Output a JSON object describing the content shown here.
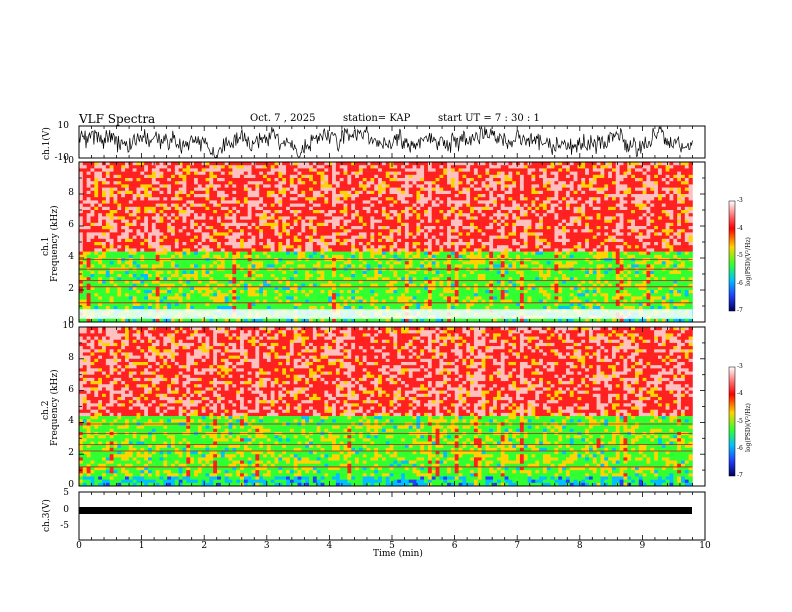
{
  "header": {
    "title": "VLF Spectra",
    "date": "Oct. 7 , 2025",
    "station": "station= KAP",
    "start": "start UT =  7 : 30 : 1"
  },
  "panels": {
    "ch1_wave": {
      "label": "ch.1(V)",
      "ytick_top": "10",
      "ytick_bottom": "-10"
    },
    "ch1_spec": {
      "label_ch": "ch.1",
      "label_freq": "Frequency (kHz)",
      "yticks": [
        "10",
        "8",
        "6",
        "4",
        "2",
        "0"
      ]
    },
    "ch2_spec": {
      "label_ch": "ch.2",
      "label_freq": "Frequency (kHz)",
      "yticks": [
        "10",
        "8",
        "6",
        "4",
        "2",
        "0"
      ]
    },
    "ch3_wave": {
      "label": "ch.3(V)",
      "ytick_top": "5",
      "ytick_mid": "0",
      "ytick_bottom": "-5"
    }
  },
  "colorbar": {
    "label": "log(PSD)(V²/Hz)",
    "ticks": [
      "-3",
      "-4",
      "-5",
      "-6",
      "-7"
    ]
  },
  "colors": {
    "red": "#ff2020",
    "green": "#30ff30",
    "yellow": "#ffd400",
    "blue": "#2040ff"
  },
  "chart_data": {
    "type": "heatmap",
    "title": "VLF Spectra",
    "xlabel": "Time (min)",
    "xticks": [
      "0",
      "1",
      "2",
      "3",
      "4",
      "5",
      "6",
      "7",
      "8",
      "9",
      "10"
    ],
    "xlim": [
      0,
      10
    ],
    "data_end_min": 9.8,
    "ylim_freq_khz": [
      0,
      10
    ],
    "ylim_ch1_v": [
      -10,
      10
    ],
    "ylim_ch3_v": [
      -5,
      5
    ],
    "colorbar_range": [
      -7,
      -3
    ],
    "series": [
      {
        "name": "ch.1 spectrogram",
        "bands_khz": [
          {
            "from": 0,
            "to": 1,
            "level": -5.2
          },
          {
            "from": 1,
            "to": 4.5,
            "level": -5.0
          },
          {
            "from": 4.5,
            "to": 10,
            "level": -3.7
          }
        ],
        "white_band_khz": [
          0.2,
          0.8
        ]
      },
      {
        "name": "ch.2 spectrogram",
        "bands_khz": [
          {
            "from": 0,
            "to": 0.6,
            "level": -5.6
          },
          {
            "from": 0.6,
            "to": 4.5,
            "level": -5.0
          },
          {
            "from": 4.5,
            "to": 10,
            "level": -3.7
          }
        ]
      }
    ]
  }
}
